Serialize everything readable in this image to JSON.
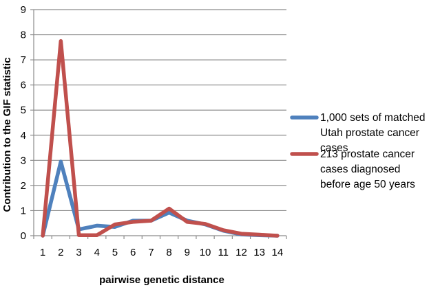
{
  "chart_data": {
    "type": "line",
    "title": "",
    "xlabel": "pairwise  genetic distance",
    "ylabel": "Contribution to the GIF statistic",
    "x": [
      1,
      2,
      3,
      4,
      5,
      6,
      7,
      8,
      9,
      10,
      11,
      12,
      13,
      14
    ],
    "ylim": [
      0,
      9
    ],
    "yticks": [
      0,
      1,
      2,
      3,
      4,
      5,
      6,
      7,
      8,
      9
    ],
    "grid": true,
    "legend_position": "right",
    "series": [
      {
        "name": "1,000 sets of matched Utah prostate cancer cases",
        "legend_lines": [
          "1,000 sets of matched",
          "Utah prostate cancer",
          "cases"
        ],
        "color": "#4F81BD",
        "values": [
          0,
          2.95,
          0.25,
          0.4,
          0.35,
          0.6,
          0.6,
          0.92,
          0.6,
          0.45,
          0.2,
          0.05,
          0.02,
          0.0
        ]
      },
      {
        "name": "213 prostate cancer cases diagnosed before age 50 years",
        "legend_lines": [
          "213 prostate cancer",
          "cases  diagnosed",
          "before age 50 years"
        ],
        "color": "#C0504D",
        "values": [
          0,
          7.75,
          0.02,
          0.02,
          0.45,
          0.55,
          0.6,
          1.08,
          0.55,
          0.47,
          0.22,
          0.08,
          0.04,
          0.0
        ]
      }
    ]
  }
}
